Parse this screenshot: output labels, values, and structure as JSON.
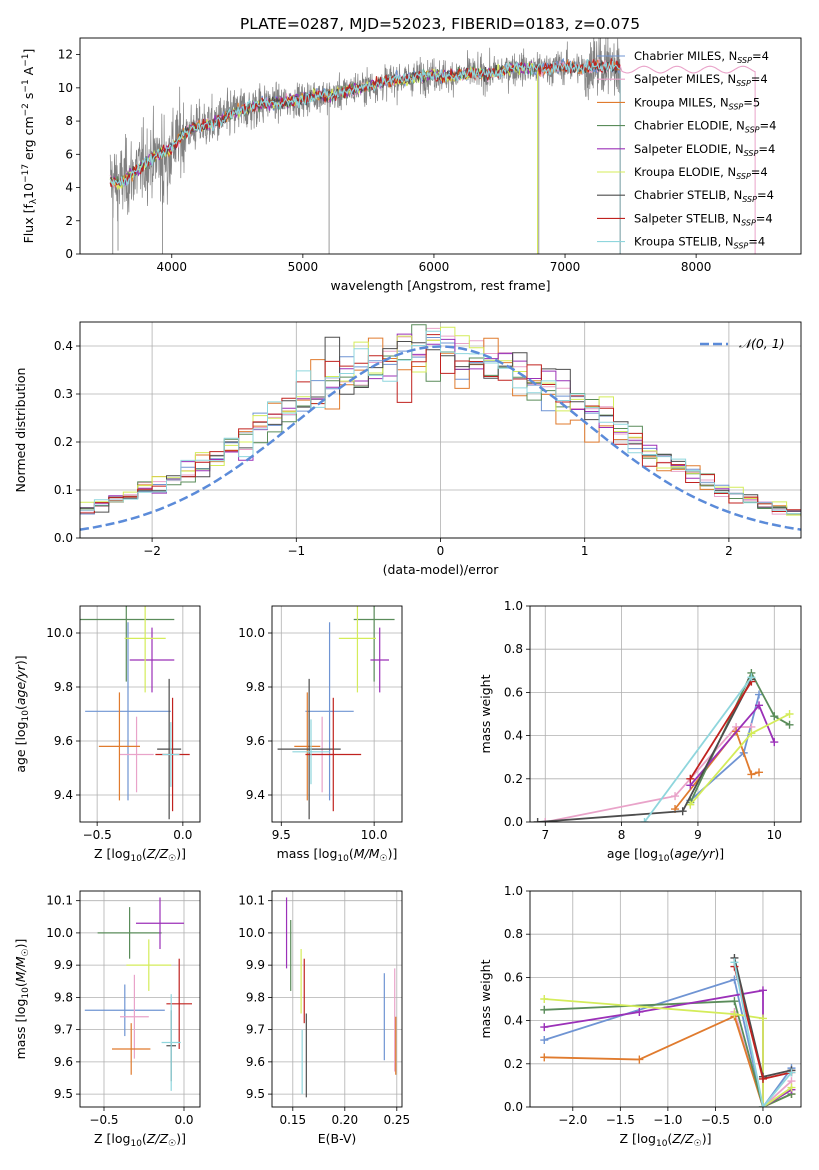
{
  "figure": {
    "title": "PLATE=0287, MJD=52023, FIBERID=0183, z=0.075"
  },
  "chart_data": [
    {
      "id": "spectrum",
      "type": "line",
      "xlabel": "wavelength [Angstrom, rest frame]",
      "ylabel": "Flux [f_λ 10^-17 erg cm^-2 s^-1 A^-1]",
      "xlim": [
        3300,
        8800
      ],
      "ylim": [
        0,
        13
      ],
      "xticks": [
        4000,
        5000,
        6000,
        7000,
        8000
      ],
      "yticks": [
        0,
        2,
        4,
        6,
        8,
        10,
        12
      ],
      "grid": false,
      "legend_position": "top-right",
      "data_color": "#808080",
      "continuum": [
        [
          3520,
          4.5
        ],
        [
          3600,
          4.2
        ],
        [
          3700,
          4.8
        ],
        [
          3800,
          5.5
        ],
        [
          3900,
          6.0
        ],
        [
          4000,
          6.4
        ],
        [
          4100,
          7.3
        ],
        [
          4200,
          7.7
        ],
        [
          4300,
          7.8
        ],
        [
          4400,
          8.2
        ],
        [
          4500,
          8.6
        ],
        [
          4600,
          8.8
        ],
        [
          4700,
          9.1
        ],
        [
          4800,
          9.1
        ],
        [
          4900,
          9.2
        ],
        [
          5000,
          9.3
        ],
        [
          5100,
          9.6
        ],
        [
          5200,
          9.5
        ],
        [
          5300,
          9.7
        ],
        [
          5400,
          10.0
        ],
        [
          5500,
          10.1
        ],
        [
          5600,
          10.3
        ],
        [
          5700,
          10.5
        ],
        [
          5800,
          10.6
        ],
        [
          5900,
          10.7
        ],
        [
          6000,
          10.8
        ],
        [
          6100,
          10.7
        ],
        [
          6200,
          10.8
        ],
        [
          6300,
          10.9
        ],
        [
          6400,
          10.8
        ],
        [
          6500,
          11.0
        ],
        [
          6600,
          11.2
        ],
        [
          6700,
          11.2
        ],
        [
          6800,
          11.1
        ],
        [
          6900,
          11.2
        ],
        [
          7000,
          11.3
        ],
        [
          7100,
          11.2
        ],
        [
          7200,
          11.3
        ],
        [
          7300,
          11.3
        ],
        [
          7400,
          11.3
        ]
      ],
      "series": [
        {
          "name": "Chabrier MILES",
          "nssp": "4",
          "color": "#6f94d3",
          "model_end": 7420
        },
        {
          "name": "Salpeter MILES",
          "nssp": "4",
          "color": "#e9a3c9",
          "model_end": 8450
        },
        {
          "name": "Kroupa MILES",
          "nssp": "5",
          "color": "#e07b2e",
          "model_end": 7420
        },
        {
          "name": "Chabrier ELODIE",
          "nssp": "4",
          "color": "#5a8c5a",
          "model_end": 6790
        },
        {
          "name": "Salpeter ELODIE",
          "nssp": "4",
          "color": "#9b30b8",
          "model_end": 6790
        },
        {
          "name": "Kroupa ELODIE",
          "nssp": "4",
          "color": "#d4ec5a",
          "model_end": 6790
        },
        {
          "name": "Chabrier STELIB",
          "nssp": "4",
          "color": "#4d4d4d",
          "model_end": 7420
        },
        {
          "name": "Salpeter STELIB",
          "nssp": "4",
          "color": "#c0221f",
          "model_end": 7420
        },
        {
          "name": "Kroupa STELIB",
          "nssp": "4",
          "color": "#8fd6dd",
          "model_end": 7420
        }
      ]
    },
    {
      "id": "residuals",
      "type": "histogram",
      "xlabel": "(data-model)/error",
      "ylabel": "Normed distribution",
      "xlim": [
        -2.5,
        2.5
      ],
      "ylim": [
        0,
        0.45
      ],
      "xticks": [
        -2,
        -1,
        0,
        1,
        2
      ],
      "yticks": [
        0.0,
        0.1,
        0.2,
        0.3,
        0.4
      ],
      "grid": true,
      "legend": "𝒩(0, 1)",
      "legend_position": "top-right",
      "gaussian_color": "#5b8bd9",
      "bin_width": 0.1,
      "envelope": [
        0.035,
        0.04,
        0.045,
        0.05,
        0.055,
        0.06,
        0.07,
        0.08,
        0.09,
        0.1,
        0.11,
        0.125,
        0.14,
        0.155,
        0.17,
        0.19,
        0.21,
        0.23,
        0.25,
        0.27,
        0.29,
        0.31,
        0.33,
        0.34,
        0.355,
        0.365,
        0.375,
        0.38,
        0.385,
        0.39,
        0.39,
        0.385,
        0.375,
        0.37,
        0.36,
        0.35,
        0.335,
        0.32,
        0.3,
        0.28,
        0.26,
        0.24,
        0.22,
        0.2,
        0.18,
        0.165,
        0.15,
        0.13,
        0.115,
        0.1,
        0.09,
        0.08,
        0.07,
        0.062,
        0.055,
        0.05,
        0.045,
        0.042,
        0.04,
        0.038
      ]
    },
    {
      "id": "age_vs_Z",
      "type": "errorbar",
      "xlabel": "Z [log10(Z/Z☉)]",
      "ylabel": "age [log10(age/yr)]",
      "xlim": [
        -0.6,
        0.1
      ],
      "ylim": [
        9.3,
        10.1
      ],
      "xticks": [
        -0.5,
        0.0
      ],
      "yticks": [
        9.4,
        9.6,
        9.8,
        10.0
      ],
      "grid": true,
      "points": [
        {
          "x": -0.32,
          "xerr": 0.25,
          "y": 9.71,
          "yerr": 0.33,
          "c": 0
        },
        {
          "x": -0.27,
          "xerr": 0.1,
          "y": 9.55,
          "yerr": 0.14,
          "c": 1
        },
        {
          "x": -0.37,
          "xerr": 0.12,
          "y": 9.58,
          "yerr": 0.2,
          "c": 2
        },
        {
          "x": -0.33,
          "xerr": 0.28,
          "y": 10.05,
          "yerr": 0.23,
          "c": 3
        },
        {
          "x": -0.18,
          "xerr": 0.13,
          "y": 9.9,
          "yerr": 0.12,
          "c": 4
        },
        {
          "x": -0.22,
          "xerr": 0.12,
          "y": 9.98,
          "yerr": 0.2,
          "c": 5
        },
        {
          "x": -0.08,
          "xerr": 0.07,
          "y": 9.57,
          "yerr": 0.26,
          "c": 6
        },
        {
          "x": -0.06,
          "xerr": 0.1,
          "y": 9.55,
          "yerr": 0.21,
          "c": 7
        },
        {
          "x": -0.07,
          "xerr": 0.05,
          "y": 9.55,
          "yerr": 0.12,
          "c": 8
        }
      ]
    },
    {
      "id": "age_vs_mass",
      "type": "errorbar",
      "xlabel": "mass [log10(M/M☉)]",
      "ylabel": "",
      "xlim": [
        9.45,
        10.15
      ],
      "ylim": [
        9.3,
        10.1
      ],
      "xticks": [
        9.5,
        10.0
      ],
      "yticks": [
        9.4,
        9.6,
        9.8,
        10.0
      ],
      "grid": true,
      "points": [
        {
          "x": 9.76,
          "xerr": 0.13,
          "y": 9.71,
          "yerr": 0.33,
          "c": 0
        },
        {
          "x": 9.72,
          "xerr": 0.07,
          "y": 9.55,
          "yerr": 0.14,
          "c": 1
        },
        {
          "x": 9.64,
          "xerr": 0.07,
          "y": 9.58,
          "yerr": 0.2,
          "c": 2
        },
        {
          "x": 10.0,
          "xerr": 0.11,
          "y": 10.05,
          "yerr": 0.23,
          "c": 3
        },
        {
          "x": 10.03,
          "xerr": 0.05,
          "y": 9.9,
          "yerr": 0.12,
          "c": 4
        },
        {
          "x": 9.91,
          "xerr": 0.1,
          "y": 9.98,
          "yerr": 0.2,
          "c": 5
        },
        {
          "x": 9.65,
          "xerr": 0.17,
          "y": 9.57,
          "yerr": 0.26,
          "c": 6
        },
        {
          "x": 9.78,
          "xerr": 0.15,
          "y": 9.55,
          "yerr": 0.21,
          "c": 7
        },
        {
          "x": 9.66,
          "xerr": 0.1,
          "y": 9.56,
          "yerr": 0.12,
          "c": 8
        }
      ]
    },
    {
      "id": "weight_vs_age",
      "type": "line",
      "xlabel": "age [log10(age/yr)]",
      "ylabel": "mass weight",
      "xlim": [
        6.8,
        10.35
      ],
      "ylim": [
        0,
        1.0
      ],
      "xticks": [
        7,
        8,
        9,
        10
      ],
      "yticks": [
        0.0,
        0.2,
        0.4,
        0.6,
        0.8,
        1.0
      ],
      "grid": true,
      "lines": [
        {
          "c": 0,
          "pts": [
            [
              8.9,
              0.1
            ],
            [
              9.6,
              0.32
            ],
            [
              9.8,
              0.59
            ]
          ]
        },
        {
          "c": 1,
          "pts": [
            [
              7.0,
              0.0
            ],
            [
              8.7,
              0.12
            ],
            [
              9.5,
              0.44
            ],
            [
              9.7,
              0.44
            ]
          ]
        },
        {
          "c": 2,
          "pts": [
            [
              8.7,
              0.06
            ],
            [
              9.5,
              0.42
            ],
            [
              9.7,
              0.22
            ],
            [
              9.8,
              0.23
            ]
          ]
        },
        {
          "c": 3,
          "pts": [
            [
              8.9,
              0.09
            ],
            [
              9.7,
              0.69
            ],
            [
              10.0,
              0.49
            ],
            [
              10.2,
              0.45
            ]
          ]
        },
        {
          "c": 4,
          "pts": [
            [
              8.9,
              0.17
            ],
            [
              9.8,
              0.54
            ],
            [
              10.0,
              0.37
            ]
          ]
        },
        {
          "c": 5,
          "pts": [
            [
              8.9,
              0.08
            ],
            [
              9.7,
              0.41
            ],
            [
              10.2,
              0.5
            ]
          ]
        },
        {
          "c": 6,
          "pts": [
            [
              6.9,
              0.0
            ],
            [
              8.8,
              0.05
            ],
            [
              9.7,
              0.66
            ]
          ]
        },
        {
          "c": 7,
          "pts": [
            [
              8.9,
              0.2
            ],
            [
              9.7,
              0.65
            ]
          ]
        },
        {
          "c": 8,
          "pts": [
            [
              8.3,
              0.0
            ],
            [
              9.7,
              0.67
            ]
          ]
        }
      ]
    },
    {
      "id": "mass_vs_Z",
      "type": "errorbar",
      "xlabel": "Z [log10(Z/Z☉)]",
      "ylabel": "mass [log10(M/M☉)]",
      "xlim": [
        -0.65,
        0.1
      ],
      "ylim": [
        9.46,
        10.13
      ],
      "xticks": [
        -0.5,
        0.0
      ],
      "yticks": [
        9.5,
        9.6,
        9.7,
        9.8,
        9.9,
        10.0,
        10.1
      ],
      "grid": true,
      "points": [
        {
          "x": -0.37,
          "xerr": 0.25,
          "y": 9.76,
          "yerr": 0.08,
          "c": 0
        },
        {
          "x": -0.31,
          "xerr": 0.09,
          "y": 9.74,
          "yerr": 0.13,
          "c": 1
        },
        {
          "x": -0.33,
          "xerr": 0.12,
          "y": 9.64,
          "yerr": 0.08,
          "c": 2
        },
        {
          "x": -0.34,
          "xerr": 0.2,
          "y": 10.0,
          "yerr": 0.08,
          "c": 3
        },
        {
          "x": -0.15,
          "xerr": 0.15,
          "y": 10.03,
          "yerr": 0.08,
          "c": 4
        },
        {
          "x": -0.22,
          "xerr": 0.14,
          "y": 9.9,
          "yerr": 0.08,
          "c": 5
        },
        {
          "x": -0.08,
          "xerr": 0.03,
          "y": 9.65,
          "yerr": 0.11,
          "c": 6
        },
        {
          "x": -0.03,
          "xerr": 0.08,
          "y": 9.78,
          "yerr": 0.14,
          "c": 7
        },
        {
          "x": -0.08,
          "xerr": 0.06,
          "y": 9.66,
          "yerr": 0.15,
          "c": 8
        }
      ]
    },
    {
      "id": "mass_vs_ebv",
      "type": "errorbar",
      "xlabel": "E(B-V)",
      "ylabel": "",
      "xlim": [
        0.13,
        0.255
      ],
      "ylim": [
        9.46,
        10.13
      ],
      "xticks": [
        0.15,
        0.2,
        0.25
      ],
      "yticks": [
        9.5,
        9.6,
        9.7,
        9.8,
        9.9,
        10.0,
        10.1
      ],
      "grid": true,
      "points": [
        {
          "x": 0.238,
          "xerr": 0,
          "y": 9.74,
          "yerr": 0.135,
          "c": 0
        },
        {
          "x": 0.248,
          "xerr": 0,
          "y": 9.73,
          "yerr": 0.16,
          "c": 1
        },
        {
          "x": 0.249,
          "xerr": 0,
          "y": 9.65,
          "yerr": 0.09,
          "c": 2
        },
        {
          "x": 0.148,
          "xerr": 0,
          "y": 9.93,
          "yerr": 0.11,
          "c": 3
        },
        {
          "x": 0.144,
          "xerr": 0,
          "y": 10.0,
          "yerr": 0.11,
          "c": 4
        },
        {
          "x": 0.158,
          "xerr": 0,
          "y": 9.85,
          "yerr": 0.1,
          "c": 5
        },
        {
          "x": 0.163,
          "xerr": 0,
          "y": 9.62,
          "yerr": 0.13,
          "c": 6
        },
        {
          "x": 0.161,
          "xerr": 0,
          "y": 9.82,
          "yerr": 0.1,
          "c": 7
        },
        {
          "x": 0.159,
          "xerr": 0,
          "y": 9.6,
          "yerr": 0.1,
          "c": 8
        }
      ]
    },
    {
      "id": "weight_vs_Z",
      "type": "line",
      "xlabel": "Z [log10(Z/Z☉)]",
      "ylabel": "mass weight",
      "xlim": [
        -2.45,
        0.4
      ],
      "ylim": [
        0,
        1.0
      ],
      "xticks": [
        -2.0,
        -1.5,
        -1.0,
        -0.5,
        0.0
      ],
      "yticks": [
        0.0,
        0.2,
        0.4,
        0.6,
        0.8,
        1.0
      ],
      "grid": true,
      "lines": [
        {
          "c": 0,
          "pts": [
            [
              -2.3,
              0.31
            ],
            [
              -0.3,
              0.59
            ],
            [
              0.0,
              0.0
            ],
            [
              0.3,
              0.18
            ]
          ]
        },
        {
          "c": 1,
          "pts": [
            [
              -0.3,
              0.44
            ],
            [
              0.0,
              0.0
            ],
            [
              0.3,
              0.12
            ]
          ]
        },
        {
          "c": 2,
          "pts": [
            [
              -2.3,
              0.23
            ],
            [
              -1.3,
              0.22
            ],
            [
              -0.3,
              0.42
            ],
            [
              0.0,
              0.0
            ],
            [
              0.3,
              0.06
            ]
          ]
        },
        {
          "c": 3,
          "pts": [
            [
              -2.3,
              0.45
            ],
            [
              -0.3,
              0.49
            ],
            [
              0.0,
              0.0
            ],
            [
              0.3,
              0.06
            ]
          ]
        },
        {
          "c": 4,
          "pts": [
            [
              -2.3,
              0.37
            ],
            [
              -1.3,
              0.44
            ],
            [
              0.0,
              0.54
            ],
            [
              0.0,
              0.0
            ],
            [
              0.3,
              0.08
            ]
          ]
        },
        {
          "c": 5,
          "pts": [
            [
              -2.3,
              0.5
            ],
            [
              -0.3,
              0.43
            ],
            [
              0.0,
              0.41
            ],
            [
              0.0,
              0.0
            ],
            [
              0.3,
              0.09
            ]
          ]
        },
        {
          "c": 6,
          "pts": [
            [
              -0.3,
              0.69
            ],
            [
              0.0,
              0.14
            ],
            [
              0.3,
              0.17
            ]
          ]
        },
        {
          "c": 7,
          "pts": [
            [
              -0.3,
              0.65
            ],
            [
              0.0,
              0.13
            ],
            [
              0.3,
              0.16
            ]
          ]
        },
        {
          "c": 8,
          "pts": [
            [
              -0.3,
              0.67
            ],
            [
              0.0,
              0.0
            ],
            [
              0.3,
              0.16
            ]
          ]
        }
      ]
    }
  ]
}
